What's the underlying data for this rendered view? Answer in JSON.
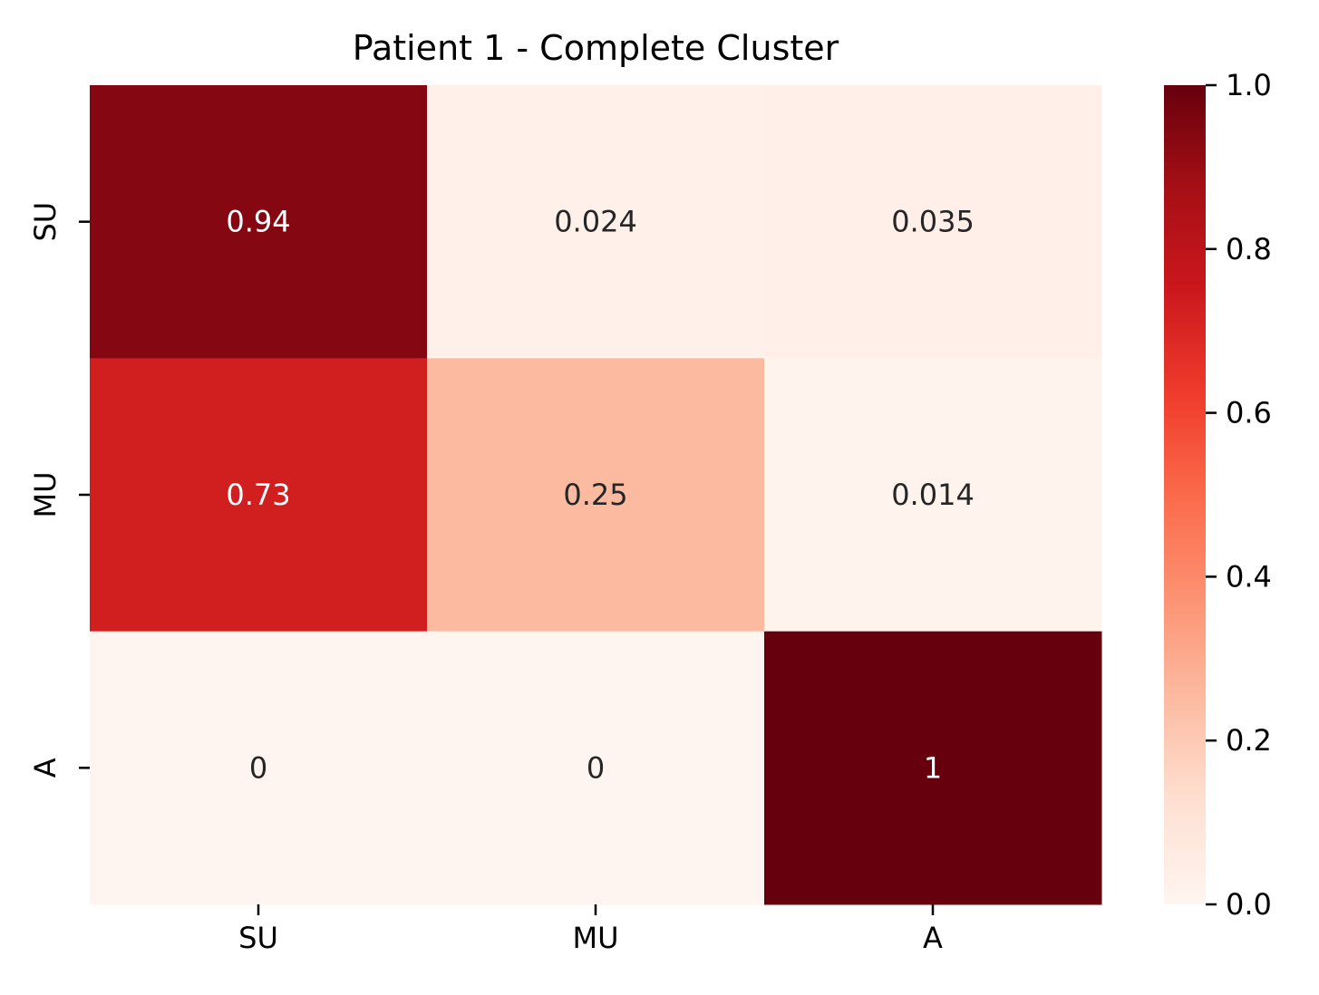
{
  "chart_data": {
    "type": "heatmap",
    "title": "Patient 1 - Complete Cluster",
    "xlabel": "",
    "ylabel": "",
    "x_categories": [
      "SU",
      "MU",
      "A"
    ],
    "y_categories": [
      "SU",
      "MU",
      "A"
    ],
    "values": [
      [
        0.94,
        0.024,
        0.035
      ],
      [
        0.73,
        0.25,
        0.014
      ],
      [
        0,
        0,
        1
      ]
    ],
    "annotations": [
      [
        "0.94",
        "0.024",
        "0.035"
      ],
      [
        "0.73",
        "0.25",
        "0.014"
      ],
      [
        "0",
        "0",
        "1"
      ]
    ],
    "colormap": "Reds",
    "colorbar": {
      "range": [
        0.0,
        1.0
      ],
      "ticks": [
        0.0,
        0.2,
        0.4,
        0.6,
        0.8,
        1.0
      ],
      "tick_labels": [
        "0.0",
        "0.2",
        "0.4",
        "0.6",
        "0.8",
        "1.0"
      ]
    },
    "legend": "colorbar-right",
    "grid": false
  }
}
